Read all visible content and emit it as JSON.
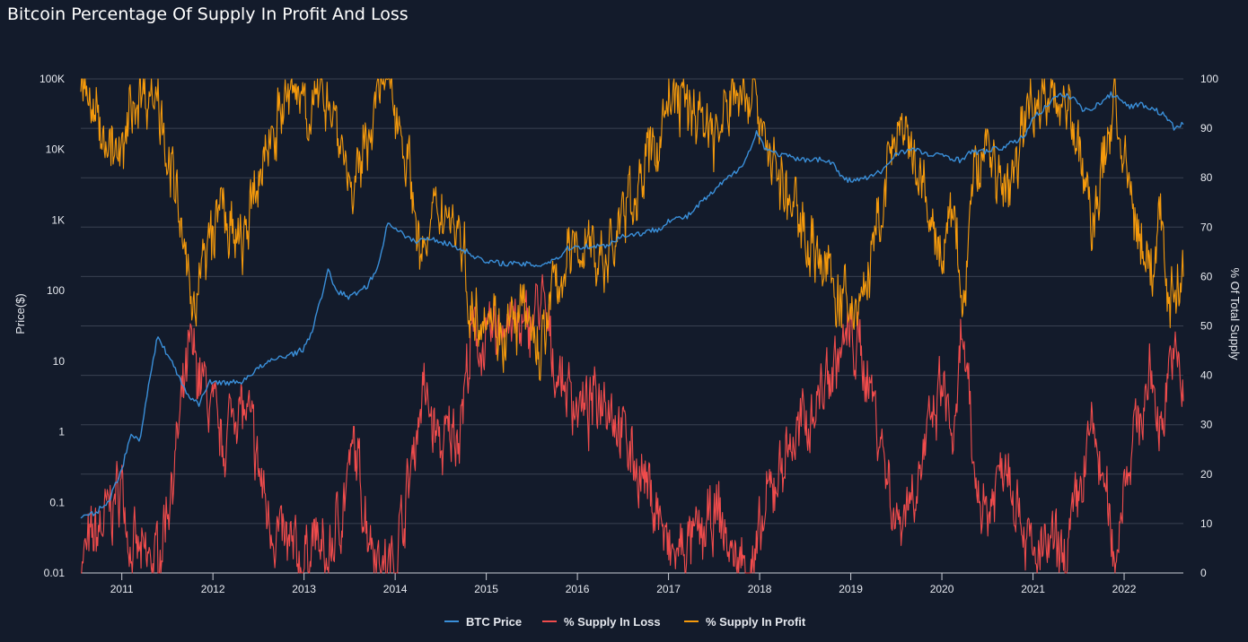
{
  "chart_data": {
    "type": "line",
    "title": "Bitcoin Percentage Of Supply In Profit And Loss",
    "ylabel_left": "Price($)",
    "ylabel_right": "% Of Total Supply",
    "y_left_scale": "log",
    "y_left_range": [
      0.01,
      100000
    ],
    "y_left_ticks": [
      {
        "v": 0.01,
        "label": "0.01"
      },
      {
        "v": 0.1,
        "label": "0.1"
      },
      {
        "v": 1,
        "label": "1"
      },
      {
        "v": 10,
        "label": "10"
      },
      {
        "v": 100,
        "label": "100"
      },
      {
        "v": 1000,
        "label": "1K"
      },
      {
        "v": 10000,
        "label": "10K"
      },
      {
        "v": 100000,
        "label": "100K"
      }
    ],
    "y_right_range": [
      0,
      100
    ],
    "y_right_ticks": [
      0,
      10,
      20,
      30,
      40,
      50,
      60,
      70,
      80,
      90,
      100
    ],
    "x_range": [
      2010.55,
      2022.65
    ],
    "x_ticks": [
      2011,
      2012,
      2013,
      2014,
      2015,
      2016,
      2017,
      2018,
      2019,
      2020,
      2021,
      2022
    ],
    "grid": "horizontal",
    "legend": "bottom-center",
    "series": [
      {
        "name": "BTC Price",
        "axis": "left",
        "color": "#3a8fd9",
        "x": [
          2010.55,
          2010.7,
          2010.85,
          2011.0,
          2011.1,
          2011.2,
          2011.3,
          2011.4,
          2011.45,
          2011.55,
          2011.65,
          2011.75,
          2011.85,
          2011.95,
          2012.1,
          2012.3,
          2012.5,
          2012.7,
          2012.9,
          2013.0,
          2013.1,
          2013.2,
          2013.27,
          2013.35,
          2013.5,
          2013.7,
          2013.8,
          2013.92,
          2014.0,
          2014.1,
          2014.2,
          2014.4,
          2014.6,
          2014.8,
          2015.0,
          2015.1,
          2015.3,
          2015.6,
          2015.8,
          2015.9,
          2016.0,
          2016.3,
          2016.5,
          2016.7,
          2016.9,
          2017.0,
          2017.2,
          2017.4,
          2017.5,
          2017.6,
          2017.7,
          2017.8,
          2017.9,
          2017.97,
          2018.05,
          2018.15,
          2018.3,
          2018.45,
          2018.6,
          2018.8,
          2018.9,
          2019.0,
          2019.2,
          2019.35,
          2019.5,
          2019.7,
          2019.9,
          2020.0,
          2020.2,
          2020.3,
          2020.5,
          2020.7,
          2020.8,
          2020.9,
          2021.0,
          2021.1,
          2021.2,
          2021.3,
          2021.45,
          2021.55,
          2021.7,
          2021.85,
          2021.95,
          2022.05,
          2022.15,
          2022.3,
          2022.45,
          2022.55,
          2022.65
        ],
        "values": [
          0.06,
          0.07,
          0.1,
          0.3,
          0.9,
          0.8,
          5,
          25,
          16,
          10,
          5,
          3,
          2.5,
          5,
          5,
          5,
          8,
          11,
          13,
          15,
          30,
          90,
          200,
          100,
          80,
          120,
          200,
          900,
          800,
          600,
          500,
          550,
          450,
          350,
          250,
          250,
          240,
          230,
          300,
          400,
          420,
          430,
          600,
          650,
          750,
          1000,
          1100,
          2000,
          2500,
          3500,
          4300,
          6000,
          10000,
          18000,
          11000,
          9000,
          8000,
          7000,
          7500,
          6500,
          4000,
          3600,
          4000,
          5000,
          9000,
          10000,
          8000,
          8500,
          7000,
          9000,
          9500,
          11000,
          13000,
          15000,
          29000,
          35000,
          50000,
          58000,
          55000,
          35000,
          42000,
          60000,
          55000,
          40000,
          44000,
          39000,
          30000,
          20000,
          23000
        ]
      },
      {
        "name": "% Supply In Loss",
        "axis": "right",
        "color": "#f04c4c",
        "x": [
          2010.55,
          2010.8,
          2011.0,
          2011.1,
          2011.25,
          2011.4,
          2011.6,
          2011.75,
          2011.9,
          2012.1,
          2012.25,
          2012.4,
          2012.6,
          2012.8,
          2013.0,
          2013.1,
          2013.25,
          2013.4,
          2013.55,
          2013.7,
          2013.85,
          2013.95,
          2014.1,
          2014.3,
          2014.5,
          2014.7,
          2014.85,
          2015.0,
          2015.2,
          2015.4,
          2015.6,
          2015.75,
          2015.9,
          2016.1,
          2016.3,
          2016.5,
          2016.7,
          2016.9,
          2017.0,
          2017.2,
          2017.4,
          2017.55,
          2017.7,
          2017.85,
          2017.95,
          2018.1,
          2018.3,
          2018.5,
          2018.7,
          2018.9,
          2019.0,
          2019.2,
          2019.35,
          2019.5,
          2019.7,
          2019.9,
          2020.0,
          2020.15,
          2020.22,
          2020.35,
          2020.5,
          2020.7,
          2020.9,
          2021.0,
          2021.2,
          2021.35,
          2021.5,
          2021.65,
          2021.8,
          2021.9,
          2022.0,
          2022.15,
          2022.3,
          2022.4,
          2022.5,
          2022.6,
          2022.65
        ],
        "values": [
          2,
          10,
          18,
          5,
          2,
          3,
          25,
          45,
          38,
          25,
          35,
          30,
          12,
          5,
          2,
          8,
          1,
          12,
          25,
          10,
          2,
          1,
          12,
          37,
          25,
          30,
          48,
          45,
          52,
          48,
          55,
          42,
          37,
          32,
          38,
          28,
          20,
          12,
          3,
          5,
          8,
          12,
          3,
          2,
          1,
          15,
          25,
          30,
          38,
          45,
          48,
          40,
          25,
          10,
          18,
          30,
          38,
          25,
          50,
          20,
          12,
          25,
          10,
          2,
          5,
          2,
          15,
          30,
          15,
          2,
          20,
          30,
          40,
          28,
          45,
          40,
          38
        ],
        "noise": 4.5
      },
      {
        "name": "% Supply In Profit",
        "axis": "right",
        "color": "#f59a0c",
        "x": [
          2010.55,
          2010.8,
          2011.0,
          2011.1,
          2011.25,
          2011.4,
          2011.6,
          2011.75,
          2011.9,
          2012.1,
          2012.25,
          2012.4,
          2012.6,
          2012.8,
          2013.0,
          2013.1,
          2013.25,
          2013.4,
          2013.55,
          2013.7,
          2013.85,
          2013.95,
          2014.1,
          2014.3,
          2014.5,
          2014.7,
          2014.85,
          2015.0,
          2015.2,
          2015.4,
          2015.6,
          2015.75,
          2015.9,
          2016.1,
          2016.3,
          2016.5,
          2016.7,
          2016.9,
          2017.0,
          2017.2,
          2017.4,
          2017.55,
          2017.7,
          2017.85,
          2017.95,
          2018.1,
          2018.3,
          2018.5,
          2018.7,
          2018.9,
          2019.0,
          2019.2,
          2019.35,
          2019.5,
          2019.7,
          2019.9,
          2020.0,
          2020.15,
          2020.22,
          2020.35,
          2020.5,
          2020.7,
          2020.9,
          2021.0,
          2021.2,
          2021.35,
          2021.5,
          2021.65,
          2021.8,
          2021.9,
          2022.0,
          2022.15,
          2022.3,
          2022.4,
          2022.5,
          2022.6,
          2022.65
        ],
        "values": [
          98,
          90,
          82,
          95,
          98,
          97,
          75,
          55,
          62,
          75,
          65,
          70,
          88,
          95,
          98,
          92,
          99,
          88,
          75,
          90,
          98,
          99,
          88,
          63,
          75,
          70,
          52,
          55,
          48,
          52,
          45,
          58,
          63,
          68,
          62,
          72,
          80,
          88,
          97,
          95,
          92,
          88,
          97,
          98,
          99,
          85,
          75,
          70,
          62,
          55,
          52,
          60,
          75,
          90,
          82,
          70,
          62,
          75,
          50,
          80,
          88,
          75,
          90,
          98,
          95,
          98,
          85,
          70,
          85,
          98,
          80,
          70,
          60,
          72,
          55,
          60,
          62
        ],
        "noise": 4.5
      }
    ]
  }
}
